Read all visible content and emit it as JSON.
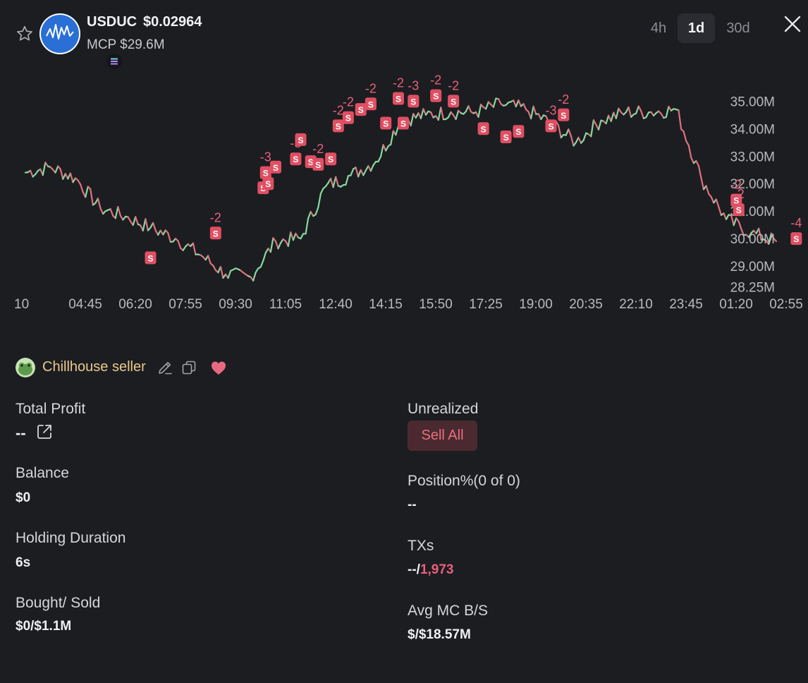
{
  "header": {
    "token_name": "USDUC",
    "token_price": "$0.02964",
    "market_cap": "MCP $29.6M",
    "timeframes": [
      "4h",
      "1d",
      "30d"
    ],
    "active_timeframe": "1d"
  },
  "chart_data": {
    "type": "line",
    "title": "",
    "x_tick_labels": [
      "10",
      "04:45",
      "06:20",
      "07:55",
      "09:30",
      "11:05",
      "12:40",
      "14:15",
      "15:50",
      "17:25",
      "19:00",
      "20:35",
      "22:10",
      "23:45",
      "01:20",
      "02:55"
    ],
    "y_tick_labels": [
      "35.00M",
      "34.00M",
      "33.00M",
      "32.00M",
      "31.00M",
      "30.00M",
      "29.00M",
      "28.25M"
    ],
    "y_tick_values": [
      35.0,
      34.0,
      33.0,
      32.0,
      31.0,
      30.0,
      29.0,
      28.25
    ],
    "ylim": [
      28.0,
      35.6
    ],
    "colors": {
      "up": "#86d8a0",
      "down": "#e0707e",
      "marker": "#e04f62"
    },
    "series": [
      {
        "unit": "M",
        "x_index": [
          0,
          0.5,
          1,
          1.5,
          2,
          2.5,
          3,
          3.5,
          4,
          4.5,
          5,
          5.5,
          6,
          6.5,
          7,
          7.5,
          8,
          8.5,
          9,
          9.5,
          10,
          10.5,
          11,
          11.5,
          12,
          12.5,
          13,
          13.5,
          14,
          14.5,
          15
        ],
        "values": [
          32.4,
          32.6,
          32.2,
          31.1,
          30.8,
          30.4,
          30.0,
          29.4,
          28.7,
          28.6,
          29.9,
          30.0,
          31.9,
          32.3,
          32.8,
          34.3,
          34.5,
          34.6,
          34.6,
          34.9,
          34.7,
          34.2,
          33.5,
          34.3,
          34.6,
          34.6,
          34.7,
          32.2,
          30.7,
          30.2,
          29.9
        ]
      }
    ],
    "trade_markers": [
      {
        "x_index": 2.5,
        "y": 29.3,
        "label": "S",
        "amount": ""
      },
      {
        "x_index": 3.8,
        "y": 30.2,
        "label": "S",
        "amount": "-2"
      },
      {
        "x_index": 4.75,
        "y": 31.85,
        "label": "S",
        "amount": ""
      },
      {
        "x_index": 4.8,
        "y": 32.4,
        "label": "S",
        "amount": "-3"
      },
      {
        "x_index": 4.85,
        "y": 32.0,
        "label": "S",
        "amount": ""
      },
      {
        "x_index": 5.0,
        "y": 32.6,
        "label": "S",
        "amount": ""
      },
      {
        "x_index": 5.4,
        "y": 32.9,
        "label": "S",
        "amount": "-3"
      },
      {
        "x_index": 5.7,
        "y": 32.8,
        "label": "S",
        "amount": ""
      },
      {
        "x_index": 5.85,
        "y": 32.7,
        "label": "S",
        "amount": "-2"
      },
      {
        "x_index": 6.1,
        "y": 32.9,
        "label": "S",
        "amount": ""
      },
      {
        "x_index": 5.5,
        "y": 33.6,
        "label": "S",
        "amount": ""
      },
      {
        "x_index": 6.25,
        "y": 34.1,
        "label": "S",
        "amount": "-2"
      },
      {
        "x_index": 6.45,
        "y": 34.4,
        "label": "S",
        "amount": "-2"
      },
      {
        "x_index": 6.7,
        "y": 34.7,
        "label": "S",
        "amount": ""
      },
      {
        "x_index": 6.9,
        "y": 34.9,
        "label": "S",
        "amount": "-2"
      },
      {
        "x_index": 7.2,
        "y": 34.2,
        "label": "S",
        "amount": ""
      },
      {
        "x_index": 7.45,
        "y": 35.1,
        "label": "S",
        "amount": "-2"
      },
      {
        "x_index": 7.55,
        "y": 34.2,
        "label": "S",
        "amount": ""
      },
      {
        "x_index": 7.75,
        "y": 35.0,
        "label": "S",
        "amount": "-3"
      },
      {
        "x_index": 8.2,
        "y": 35.2,
        "label": "S",
        "amount": "-2"
      },
      {
        "x_index": 8.55,
        "y": 35.0,
        "label": "S",
        "amount": "-2"
      },
      {
        "x_index": 9.15,
        "y": 34.0,
        "label": "S",
        "amount": ""
      },
      {
        "x_index": 9.6,
        "y": 33.7,
        "label": "S",
        "amount": ""
      },
      {
        "x_index": 9.85,
        "y": 33.9,
        "label": "S",
        "amount": ""
      },
      {
        "x_index": 10.5,
        "y": 34.1,
        "label": "S",
        "amount": "-3"
      },
      {
        "x_index": 10.75,
        "y": 34.5,
        "label": "S",
        "amount": "-2"
      },
      {
        "x_index": 14.2,
        "y": 31.4,
        "label": "S",
        "amount": "-2"
      },
      {
        "x_index": 14.25,
        "y": 31.05,
        "label": "S",
        "amount": "-2"
      },
      {
        "x_index": 15.4,
        "y": 30.0,
        "label": "S",
        "amount": "-4"
      }
    ]
  },
  "wallet": {
    "name": "Chillhouse seller"
  },
  "stats": {
    "total_profit_label": "Total Profit",
    "total_profit_value": "--",
    "unrealized_label": "Unrealized",
    "sell_all_label": "Sell All",
    "balance_label": "Balance",
    "balance_value": "$0",
    "position_label": "Position%(0 of 0)",
    "position_value": "--",
    "holding_label": "Holding Duration",
    "holding_value": "6s",
    "txs_label": "TXs",
    "txs_prefix": "--/",
    "txs_count": "1,973",
    "bought_sold_label": "Bought/ Sold",
    "bought_sold_value": "$0/$1.1M",
    "avg_mc_label": "Avg MC B/S",
    "avg_mc_value": "$/$18.57M"
  }
}
